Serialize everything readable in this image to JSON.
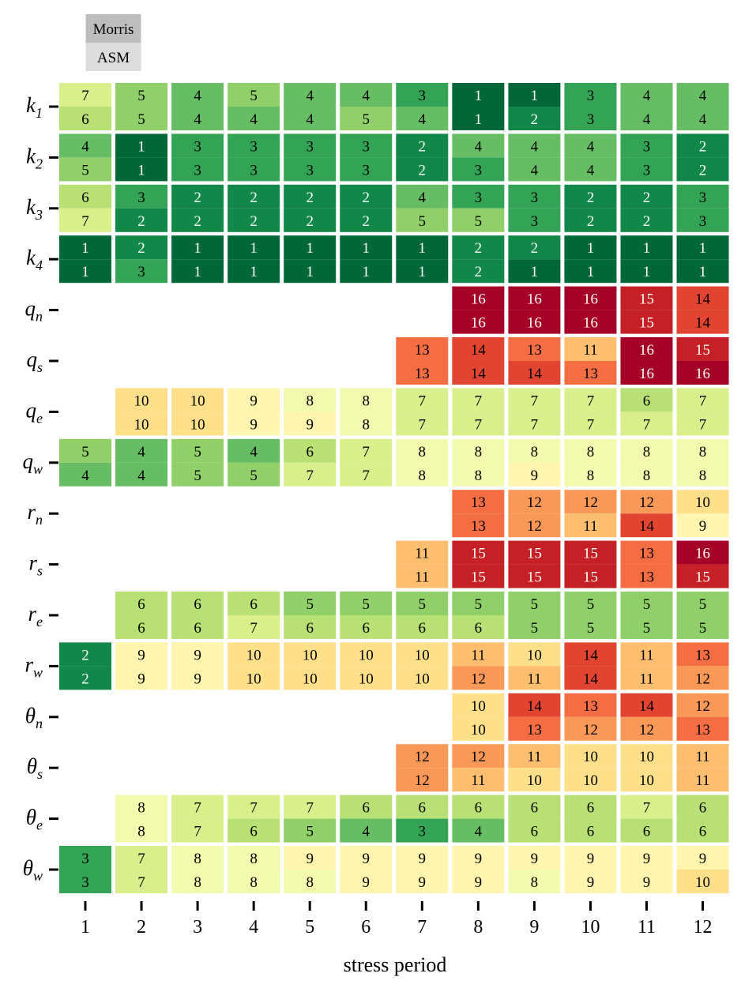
{
  "chart_data": {
    "type": "heatmap",
    "title": "",
    "xlabel": "stress period",
    "ylabel": "",
    "legend": [
      {
        "label": "Morris",
        "position": "top",
        "color": "#bdbdbd"
      },
      {
        "label": "ASM",
        "position": "bottom",
        "color": "#dcdcdc"
      }
    ],
    "colormap": "RdYlGn_r",
    "rank_range": [
      1,
      16
    ],
    "x": [
      "1",
      "2",
      "3",
      "4",
      "5",
      "6",
      "7",
      "8",
      "9",
      "10",
      "11",
      "12"
    ],
    "rows": [
      {
        "symbol": "k",
        "sub": "1",
        "morris": [
          7,
          5,
          4,
          5,
          4,
          4,
          3,
          1,
          1,
          3,
          4,
          4
        ],
        "asm": [
          6,
          5,
          4,
          4,
          4,
          5,
          4,
          1,
          2,
          3,
          4,
          4
        ]
      },
      {
        "symbol": "k",
        "sub": "2",
        "morris": [
          4,
          1,
          3,
          3,
          3,
          3,
          2,
          4,
          4,
          4,
          3,
          2
        ],
        "asm": [
          5,
          1,
          3,
          3,
          3,
          3,
          2,
          3,
          4,
          4,
          3,
          2
        ]
      },
      {
        "symbol": "k",
        "sub": "3",
        "morris": [
          6,
          3,
          2,
          2,
          2,
          2,
          4,
          3,
          3,
          2,
          2,
          3
        ],
        "asm": [
          7,
          2,
          2,
          2,
          2,
          2,
          5,
          5,
          3,
          2,
          2,
          3
        ]
      },
      {
        "symbol": "k",
        "sub": "4",
        "morris": [
          1,
          2,
          1,
          1,
          1,
          1,
          1,
          2,
          2,
          1,
          1,
          1
        ],
        "asm": [
          1,
          3,
          1,
          1,
          1,
          1,
          1,
          2,
          1,
          1,
          1,
          1
        ]
      },
      {
        "symbol": "q",
        "sub": "n",
        "morris": [
          null,
          null,
          null,
          null,
          null,
          null,
          null,
          16,
          16,
          16,
          15,
          14
        ],
        "asm": [
          null,
          null,
          null,
          null,
          null,
          null,
          null,
          16,
          16,
          16,
          15,
          14
        ]
      },
      {
        "symbol": "q",
        "sub": "s",
        "morris": [
          null,
          null,
          null,
          null,
          null,
          null,
          13,
          14,
          13,
          11,
          16,
          15
        ],
        "asm": [
          null,
          null,
          null,
          null,
          null,
          null,
          13,
          14,
          14,
          13,
          16,
          16
        ]
      },
      {
        "symbol": "q",
        "sub": "e",
        "morris": [
          null,
          10,
          10,
          9,
          8,
          8,
          7,
          7,
          7,
          7,
          6,
          7
        ],
        "asm": [
          null,
          10,
          10,
          9,
          9,
          8,
          7,
          7,
          7,
          7,
          7,
          7
        ]
      },
      {
        "symbol": "q",
        "sub": "w",
        "morris": [
          5,
          4,
          5,
          4,
          6,
          7,
          8,
          8,
          8,
          8,
          8,
          8
        ],
        "asm": [
          4,
          4,
          5,
          5,
          7,
          7,
          8,
          8,
          9,
          8,
          8,
          8
        ]
      },
      {
        "symbol": "r",
        "sub": "n",
        "morris": [
          null,
          null,
          null,
          null,
          null,
          null,
          null,
          13,
          12,
          12,
          12,
          10
        ],
        "asm": [
          null,
          null,
          null,
          null,
          null,
          null,
          null,
          13,
          12,
          11,
          14,
          9
        ]
      },
      {
        "symbol": "r",
        "sub": "s",
        "morris": [
          null,
          null,
          null,
          null,
          null,
          null,
          11,
          15,
          15,
          15,
          13,
          16
        ],
        "asm": [
          null,
          null,
          null,
          null,
          null,
          null,
          11,
          15,
          15,
          15,
          13,
          15
        ]
      },
      {
        "symbol": "r",
        "sub": "e",
        "morris": [
          null,
          6,
          6,
          6,
          5,
          5,
          5,
          5,
          5,
          5,
          5,
          5
        ],
        "asm": [
          null,
          6,
          6,
          7,
          6,
          6,
          6,
          6,
          5,
          5,
          5,
          5
        ]
      },
      {
        "symbol": "r",
        "sub": "w",
        "morris": [
          2,
          9,
          9,
          10,
          10,
          10,
          10,
          11,
          10,
          14,
          11,
          13
        ],
        "asm": [
          2,
          9,
          9,
          10,
          10,
          10,
          10,
          12,
          11,
          14,
          11,
          12
        ]
      },
      {
        "symbol": "θ",
        "sub": "n",
        "morris": [
          null,
          null,
          null,
          null,
          null,
          null,
          null,
          10,
          14,
          13,
          14,
          12
        ],
        "asm": [
          null,
          null,
          null,
          null,
          null,
          null,
          null,
          10,
          13,
          12,
          12,
          13
        ]
      },
      {
        "symbol": "θ",
        "sub": "s",
        "morris": [
          null,
          null,
          null,
          null,
          null,
          null,
          12,
          12,
          11,
          10,
          10,
          11
        ],
        "asm": [
          null,
          null,
          null,
          null,
          null,
          null,
          12,
          11,
          10,
          10,
          10,
          11
        ]
      },
      {
        "symbol": "θ",
        "sub": "e",
        "morris": [
          null,
          8,
          7,
          7,
          7,
          6,
          6,
          6,
          6,
          6,
          7,
          6
        ],
        "asm": [
          null,
          8,
          7,
          6,
          5,
          4,
          3,
          4,
          6,
          6,
          6,
          6
        ]
      },
      {
        "symbol": "θ",
        "sub": "w",
        "morris": [
          3,
          7,
          8,
          8,
          9,
          9,
          9,
          9,
          9,
          9,
          9,
          9
        ],
        "asm": [
          3,
          7,
          8,
          8,
          8,
          9,
          9,
          9,
          8,
          9,
          9,
          10
        ]
      }
    ]
  }
}
